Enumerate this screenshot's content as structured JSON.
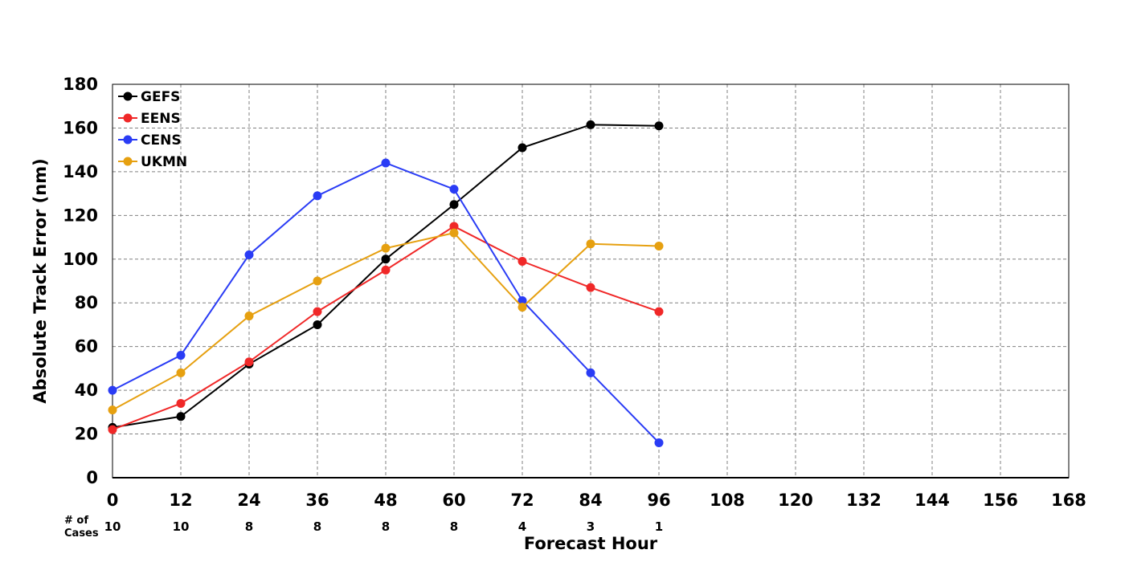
{
  "chart_data": {
    "type": "line",
    "title": "",
    "xlabel": "Forecast Hour",
    "ylabel": "Absolute Track Error (nm)",
    "xlim": [
      0,
      168
    ],
    "ylim": [
      0,
      180
    ],
    "x_ticks": [
      0,
      12,
      24,
      36,
      48,
      60,
      72,
      84,
      96,
      108,
      120,
      132,
      144,
      156,
      168
    ],
    "y_ticks": [
      0,
      20,
      40,
      60,
      80,
      100,
      120,
      140,
      160,
      180
    ],
    "grid": true,
    "legend_position": "top-left",
    "x": [
      0,
      12,
      24,
      36,
      48,
      60,
      72,
      84,
      96
    ],
    "series": [
      {
        "name": "GEFS",
        "color": "#000000",
        "values": [
          23,
          28,
          52,
          70,
          100,
          125,
          151,
          161.5,
          161
        ]
      },
      {
        "name": "EENS",
        "color": "#f02828",
        "values": [
          22,
          34,
          53,
          76,
          95,
          115,
          99,
          87,
          76
        ]
      },
      {
        "name": "CENS",
        "color": "#2a3cf5",
        "values": [
          40,
          56,
          102,
          129,
          144,
          132,
          81,
          48,
          16
        ]
      },
      {
        "name": "UKMN",
        "color": "#e6a010",
        "values": [
          31,
          48,
          74,
          90,
          105,
          112,
          78,
          107,
          106
        ]
      }
    ],
    "cases": {
      "label_line1": "# of",
      "label_line2": "Cases",
      "values": [
        10,
        10,
        8,
        8,
        8,
        8,
        4,
        3,
        1
      ]
    }
  }
}
